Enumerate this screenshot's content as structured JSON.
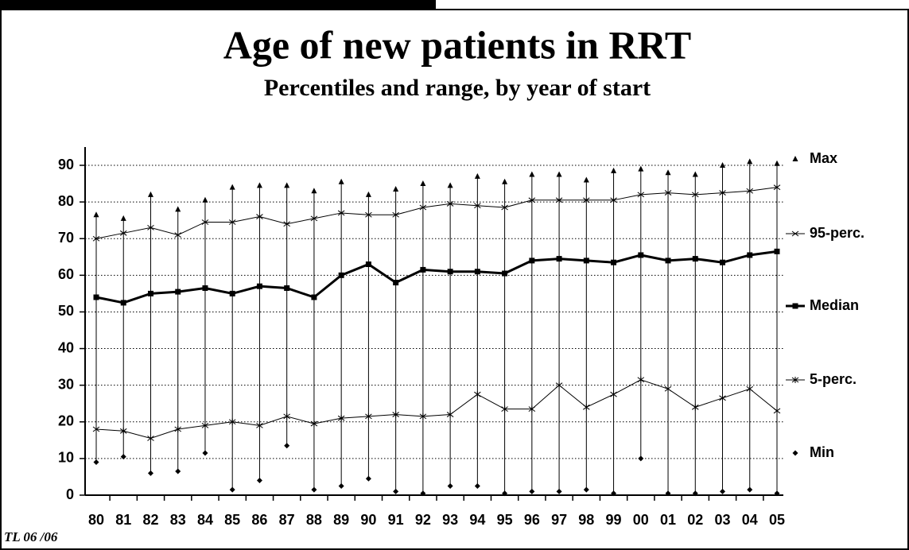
{
  "chart_data": {
    "type": "range-line",
    "title": "Age of new patients in RRT",
    "subtitle": "Percentiles and range,   by year of start",
    "footnote": "TL 06 /06",
    "categories": [
      "80",
      "81",
      "82",
      "83",
      "84",
      "85",
      "86",
      "87",
      "88",
      "89",
      "90",
      "91",
      "92",
      "93",
      "94",
      "95",
      "96",
      "97",
      "98",
      "99",
      "00",
      "01",
      "02",
      "03",
      "04",
      "05"
    ],
    "ylim": [
      0,
      90
    ],
    "yticks": [
      0,
      10,
      20,
      30,
      40,
      50,
      60,
      70,
      80,
      90
    ],
    "grid": true,
    "series": [
      {
        "name": "Max",
        "color": "#000000",
        "marker": "triangle",
        "line": false,
        "values": [
          76.5,
          75.5,
          82,
          78,
          80.5,
          84,
          84.5,
          84.5,
          83,
          85.5,
          82,
          83.5,
          85,
          84.5,
          87,
          85.5,
          87.5,
          87.5,
          86,
          88.5,
          89,
          88,
          87.5,
          90,
          91,
          90.5
        ]
      },
      {
        "name": "95-perc.",
        "color": "#000000",
        "marker": "x",
        "line": true,
        "values": [
          70,
          71.5,
          73,
          71,
          74.5,
          74.5,
          76,
          74,
          75.5,
          77,
          76.5,
          76.5,
          78.5,
          79.5,
          79,
          78.5,
          80.5,
          80.5,
          80.5,
          80.5,
          82,
          82.5,
          82,
          82.5,
          83,
          84
        ]
      },
      {
        "name": "Median",
        "color": "#000000",
        "marker": "square",
        "line": true,
        "values": [
          54,
          52.5,
          55,
          55.5,
          56.5,
          55,
          57,
          56.5,
          54,
          60,
          63,
          58,
          61.5,
          61,
          61,
          60.5,
          64,
          64.5,
          64,
          63.5,
          65.5,
          64,
          64.5,
          63.5,
          65.5,
          66.5
        ]
      },
      {
        "name": "5-perc.",
        "color": "#000000",
        "marker": "star",
        "line": true,
        "values": [
          18,
          17.5,
          15.5,
          18,
          19,
          20,
          19,
          21.5,
          19.5,
          21,
          21.5,
          22,
          21.5,
          22,
          27.5,
          23.5,
          23.5,
          30,
          24,
          27.5,
          31.5,
          29,
          24,
          26.5,
          29,
          23
        ]
      },
      {
        "name": "Min",
        "color": "#000000",
        "marker": "diamond",
        "line": false,
        "values": [
          9,
          10.5,
          6,
          6.5,
          11.5,
          1.5,
          4,
          13.5,
          1.5,
          2.5,
          4.5,
          1,
          0.5,
          2.5,
          2.5,
          0.5,
          1,
          1,
          1.5,
          0.5,
          10,
          0.5,
          0.5,
          1,
          1.5,
          0.5
        ]
      }
    ]
  }
}
